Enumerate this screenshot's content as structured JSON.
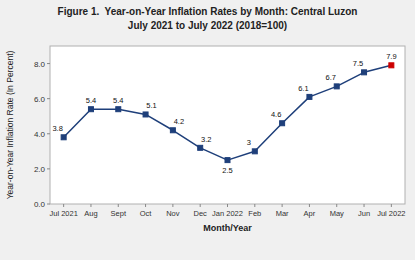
{
  "chart_data": {
    "type": "line",
    "title": "Figure 1.  Year-on-Year Inflation Rates by Month: Central Luzon",
    "subtitle": "July 2021 to July 2022 (2018=100)",
    "x_label": "Month/Year",
    "y_label": "Year-on-Year Inflation Rate (In Percent)",
    "categories": [
      "Jul 2021",
      "Aug",
      "Sept",
      "Oct",
      "Nov",
      "Dec",
      "Jan 2022",
      "Feb",
      "Mar",
      "Apr",
      "May",
      "Jun",
      "Jul 2022"
    ],
    "values": [
      3.8,
      5.4,
      5.4,
      5.1,
      4.2,
      3.2,
      2.5,
      3.0,
      4.6,
      6.1,
      6.7,
      7.5,
      7.9
    ],
    "color": "#1e3f7a",
    "colors": [
      "#1e3f7a",
      "#1e3f7a",
      "#1e3f7a",
      "#1e3f7a",
      "#1e3f7a",
      "#1e3f7a",
      "#1e3f7a",
      "#1e3f7a",
      "#1e3f7a",
      "#1e3f7a",
      "#1e3f7a",
      "#1e3f7a",
      "#cc0000"
    ],
    "marker": "square",
    "ylim": [
      0.0,
      9.0
    ],
    "yticks": [
      {
        "value": 0.0,
        "label": "0.0"
      },
      {
        "value": 2.0,
        "label": "2.0"
      },
      {
        "value": 4.0,
        "label": "4.0"
      },
      {
        "value": 6.0,
        "label": "6.0"
      },
      {
        "value": 8.0,
        "label": "8.0"
      }
    ],
    "grid": false,
    "data_labels": true
  }
}
